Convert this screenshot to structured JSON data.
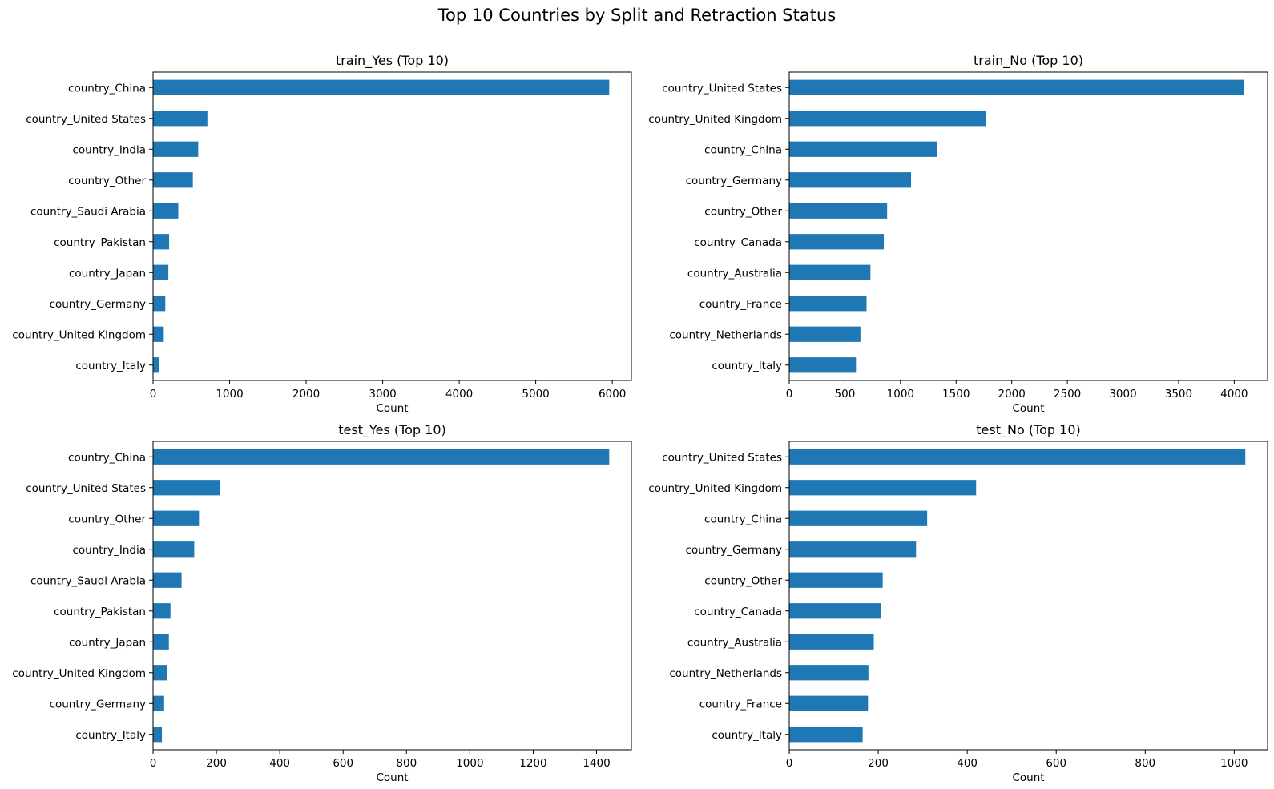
{
  "figure": {
    "title": "Top 10 Countries by Split and Retraction Status"
  },
  "colors": {
    "bar": "#1f77b4",
    "axes": "#000000",
    "background": "#ffffff"
  },
  "chart_data": [
    {
      "type": "bar",
      "orientation": "horizontal",
      "title": "train_Yes (Top 10)",
      "xlabel": "Count",
      "ylabel": "",
      "xlim": [
        0,
        6250
      ],
      "xticks": [
        0,
        1000,
        2000,
        3000,
        4000,
        5000,
        6000
      ],
      "grid": false,
      "categories": [
        "country_China",
        "country_United States",
        "country_India",
        "country_Other",
        "country_Saudi Arabia",
        "country_Pakistan",
        "country_Japan",
        "country_Germany",
        "country_United Kingdom",
        "country_Italy"
      ],
      "values": [
        5960,
        710,
        590,
        520,
        330,
        210,
        200,
        160,
        140,
        80
      ]
    },
    {
      "type": "bar",
      "orientation": "horizontal",
      "title": "train_No (Top 10)",
      "xlabel": "Count",
      "ylabel": "",
      "xlim": [
        0,
        4300
      ],
      "xticks": [
        0,
        500,
        1000,
        1500,
        2000,
        2500,
        3000,
        3500,
        4000
      ],
      "grid": false,
      "categories": [
        "country_United States",
        "country_United Kingdom",
        "country_China",
        "country_Germany",
        "country_Other",
        "country_Canada",
        "country_Australia",
        "country_France",
        "country_Netherlands",
        "country_Italy"
      ],
      "values": [
        4090,
        1765,
        1330,
        1095,
        880,
        850,
        730,
        695,
        640,
        600
      ]
    },
    {
      "type": "bar",
      "orientation": "horizontal",
      "title": "test_Yes (Top 10)",
      "xlabel": "Count",
      "ylabel": "",
      "xlim": [
        0,
        1510
      ],
      "xticks": [
        0,
        200,
        400,
        600,
        800,
        1000,
        1200,
        1400
      ],
      "grid": false,
      "categories": [
        "country_China",
        "country_United States",
        "country_Other",
        "country_India",
        "country_Saudi Arabia",
        "country_Pakistan",
        "country_Japan",
        "country_United Kingdom",
        "country_Germany",
        "country_Italy"
      ],
      "values": [
        1440,
        210,
        145,
        130,
        90,
        55,
        50,
        45,
        35,
        28
      ]
    },
    {
      "type": "bar",
      "orientation": "horizontal",
      "title": "test_No (Top 10)",
      "xlabel": "Count",
      "ylabel": "",
      "xlim": [
        0,
        1075
      ],
      "xticks": [
        0,
        200,
        400,
        600,
        800,
        1000
      ],
      "grid": false,
      "categories": [
        "country_United States",
        "country_United Kingdom",
        "country_China",
        "country_Germany",
        "country_Other",
        "country_Canada",
        "country_Australia",
        "country_Netherlands",
        "country_France",
        "country_Italy"
      ],
      "values": [
        1025,
        420,
        310,
        285,
        210,
        207,
        190,
        178,
        177,
        165
      ]
    }
  ]
}
